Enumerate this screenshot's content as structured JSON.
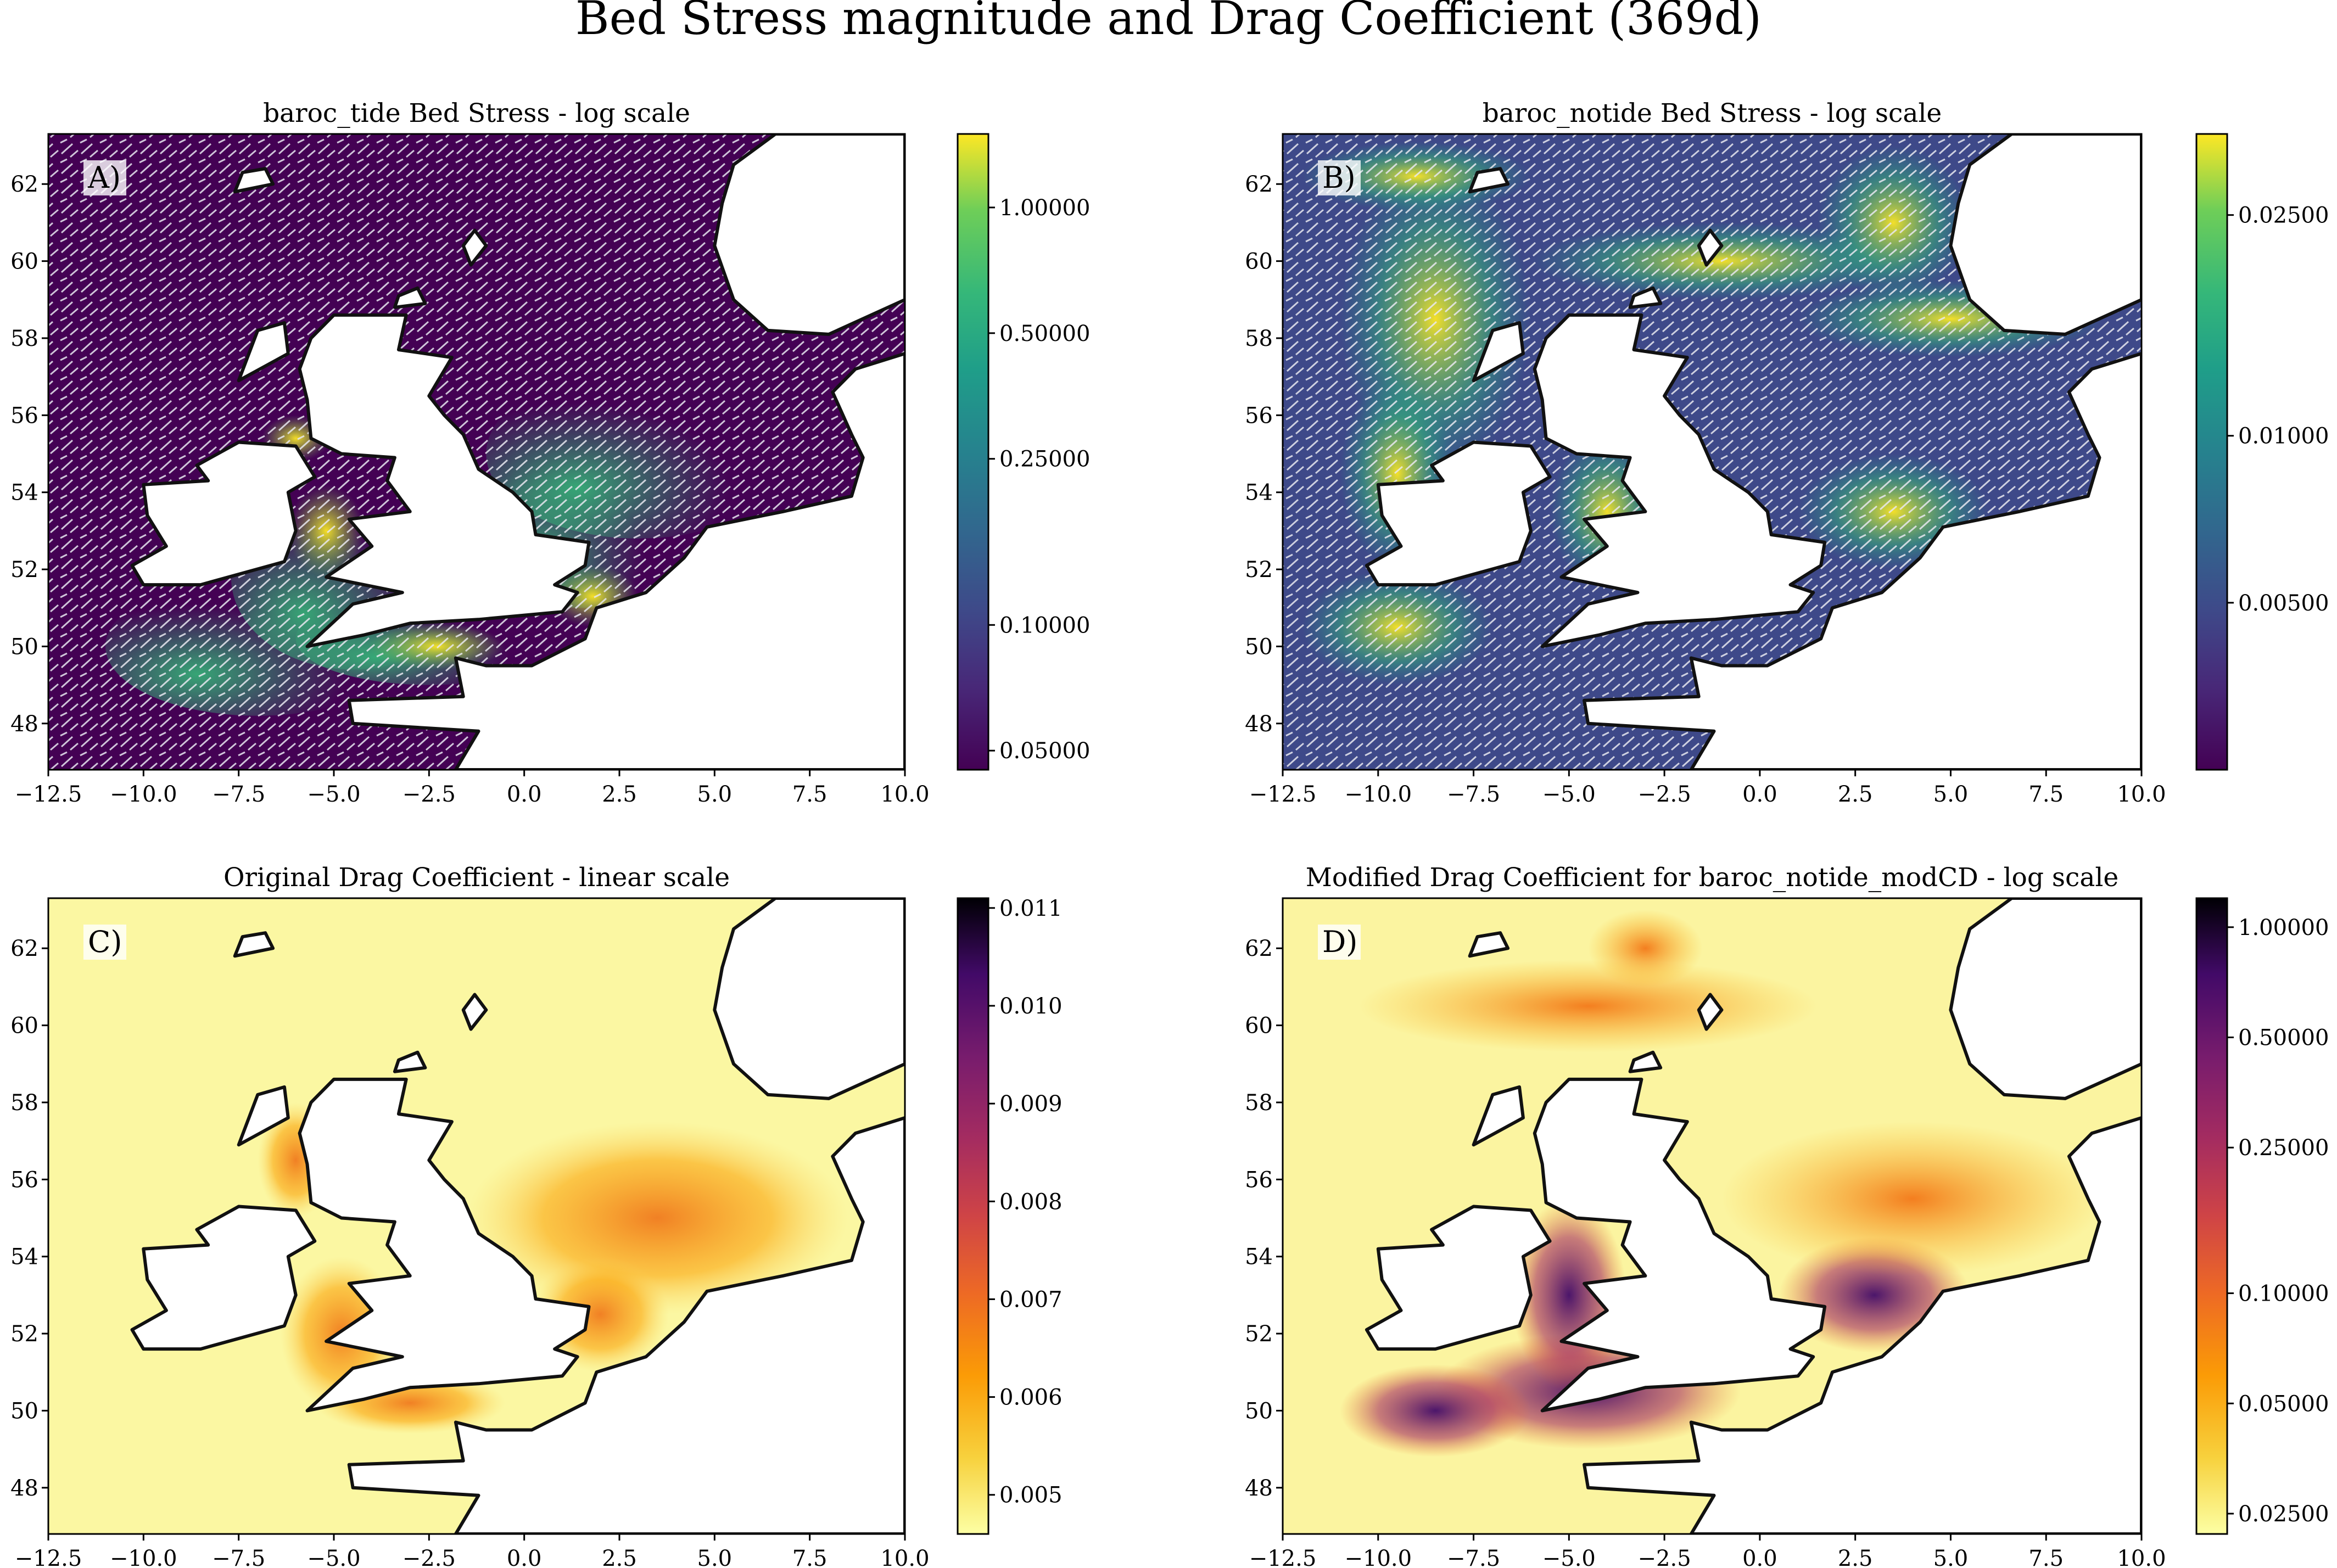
{
  "figure": {
    "title": "Bed Stress magnitude and Drag Coefficient (369d)"
  },
  "chart_data": [
    {
      "type": "heatmap",
      "panel_label": "A)",
      "title": "baroc_tide Bed Stress - log scale",
      "xlim": [
        -12.5,
        10.0
      ],
      "ylim": [
        46.8,
        63.3
      ],
      "x_ticks": [
        "−12.5",
        "−10.0",
        "−7.5",
        "−5.0",
        "−2.5",
        "0.0",
        "2.5",
        "5.0",
        "7.5",
        "10.0"
      ],
      "y_ticks": [
        "48",
        "50",
        "52",
        "54",
        "56",
        "58",
        "60",
        "62"
      ],
      "colorbar": {
        "colormap": "viridis",
        "scale": "log",
        "range": [
          0.045,
          1.5
        ],
        "ticks": [
          {
            "value": 0.05,
            "label": "0.05000"
          },
          {
            "value": 0.1,
            "label": "0.10000"
          },
          {
            "value": 0.25,
            "label": "0.25000"
          },
          {
            "value": 0.5,
            "label": "0.50000"
          },
          {
            "value": 1.0,
            "label": "1.00000"
          }
        ]
      },
      "overlay": "white stress-direction vectors"
    },
    {
      "type": "heatmap",
      "panel_label": "B)",
      "title": "baroc_notide Bed Stress - log scale",
      "xlim": [
        -12.5,
        10.0
      ],
      "ylim": [
        46.8,
        63.3
      ],
      "x_ticks": [
        "−12.5",
        "−10.0",
        "−7.5",
        "−5.0",
        "−2.5",
        "0.0",
        "2.5",
        "5.0",
        "7.5",
        "10.0"
      ],
      "y_ticks": [
        "48",
        "50",
        "52",
        "54",
        "56",
        "58",
        "60",
        "62"
      ],
      "colorbar": {
        "colormap": "viridis",
        "scale": "log",
        "range": [
          0.0025,
          0.035
        ],
        "ticks": [
          {
            "value": 0.005,
            "label": "0.00500"
          },
          {
            "value": 0.01,
            "label": "0.01000"
          },
          {
            "value": 0.025,
            "label": "0.02500"
          }
        ]
      },
      "overlay": "white stress-direction vectors"
    },
    {
      "type": "heatmap",
      "panel_label": "C)",
      "title": "Original Drag Coefficient - linear scale",
      "xlim": [
        -12.5,
        10.0
      ],
      "ylim": [
        46.8,
        63.3
      ],
      "x_ticks": [
        "−12.5",
        "−10.0",
        "−7.5",
        "−5.0",
        "−2.5",
        "0.0",
        "2.5",
        "5.0",
        "7.5",
        "10.0"
      ],
      "y_ticks": [
        "48",
        "50",
        "52",
        "54",
        "56",
        "58",
        "60",
        "62"
      ],
      "colorbar": {
        "colormap": "inferno_r",
        "scale": "linear",
        "range": [
          0.0046,
          0.0111
        ],
        "ticks": [
          {
            "value": 0.005,
            "label": "0.005"
          },
          {
            "value": 0.006,
            "label": "0.006"
          },
          {
            "value": 0.007,
            "label": "0.007"
          },
          {
            "value": 0.008,
            "label": "0.008"
          },
          {
            "value": 0.009,
            "label": "0.009"
          },
          {
            "value": 0.01,
            "label": "0.010"
          },
          {
            "value": 0.011,
            "label": "0.011"
          }
        ]
      }
    },
    {
      "type": "heatmap",
      "panel_label": "D)",
      "title": "Modified Drag Coefficient for baroc_notide_modCD - log scale",
      "xlim": [
        -12.5,
        10.0
      ],
      "ylim": [
        46.8,
        63.3
      ],
      "x_ticks": [
        "−12.5",
        "−10.0",
        "−7.5",
        "−5.0",
        "−2.5",
        "0.0",
        "2.5",
        "5.0",
        "7.5",
        "10.0"
      ],
      "y_ticks": [
        "48",
        "50",
        "52",
        "54",
        "56",
        "58",
        "60",
        "62"
      ],
      "colorbar": {
        "colormap": "inferno_r",
        "scale": "log",
        "range": [
          0.022,
          1.2
        ],
        "ticks": [
          {
            "value": 0.025,
            "label": "0.02500"
          },
          {
            "value": 0.05,
            "label": "0.05000"
          },
          {
            "value": 0.1,
            "label": "0.10000"
          },
          {
            "value": 0.25,
            "label": "0.25000"
          },
          {
            "value": 0.5,
            "label": "0.50000"
          },
          {
            "value": 1.0,
            "label": "1.00000"
          }
        ]
      }
    }
  ]
}
